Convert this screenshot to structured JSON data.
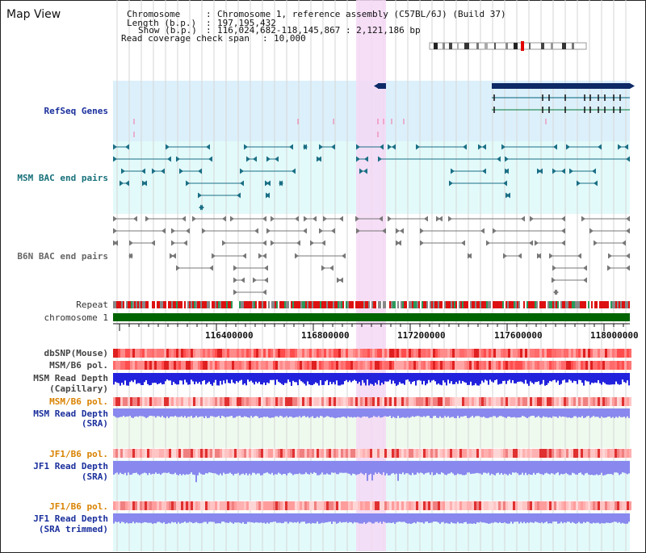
{
  "title": "Map View",
  "info": {
    "chromosome_key": "Chromosome",
    "chromosome_val": "Chromosome 1, reference assembly (C57BL/6J) (Build 37)",
    "length_key": "Length (b.p.)",
    "length_val": "197,195,432",
    "show_key": "Show (b.p.)",
    "show_val": "116,024,682-118,145,867 : 2,121,186 bp",
    "coverage_key": "Read coverage check span",
    "coverage_val": "10,000"
  },
  "tracks": {
    "refseq": "RefSeq Genes",
    "msm_bac": "MSM BAC end pairs",
    "b6n_bac": "B6N BAC end pairs",
    "repeat": "Repeat",
    "chromosome": "chromosome 1",
    "dbsnp": "dbSNP(Mouse)",
    "msm_b6_pol_1": "MSM/B6 pol.",
    "msm_depth_cap_1": "MSM Read Depth",
    "msm_depth_cap_2": "(Capillary)",
    "msm_b6_pol_2": "MSM/B6 pol.",
    "msm_depth_sra_1": "MSM Read Depth",
    "msm_depth_sra_2": "(SRA)",
    "jf1_b6_pol_1": "JF1/B6 pol.",
    "jf1_depth_sra_1": "JF1 Read Depth",
    "jf1_depth_sra_2": "(SRA)",
    "jf1_b6_pol_2": "JF1/B6 pol.",
    "jf1_depth_trim_1": "JF1 Read Depth",
    "jf1_depth_trim_2": "(SRA trimmed)"
  },
  "axis_ticks": [
    "116400000",
    "116800000",
    "117200000",
    "117600000",
    "118000000"
  ],
  "colors": {
    "refseq_bg": "#dcf0fb",
    "msm_bg": "#e3fafa",
    "highlight": "#f5d8f5",
    "chromosome_bar": "#006400",
    "gene": "#0d2a66",
    "depth_capillary": "#2222dd",
    "depth_sra": "#8888ee"
  }
}
